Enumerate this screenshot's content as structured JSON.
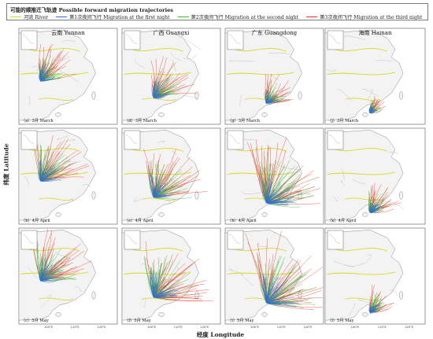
{
  "legend": {
    "title": "可能的顺推迁飞轨迹 Possible forward migration trajectories",
    "items": [
      {
        "label": "河流 River",
        "color": "#d8d820"
      },
      {
        "label": "第1次夜间飞行 Migration at the first night",
        "color": "#2f6fd6"
      },
      {
        "label": "第2次夜间飞行 Migration at the second night",
        "color": "#3cb43c"
      },
      {
        "label": "第3次夜间飞行 Migration at the third night",
        "color": "#e8321e"
      }
    ]
  },
  "axes": {
    "ylabel": "纬度 Latitude",
    "xlabel": "经度 Longitude",
    "x_ticks": [
      "100°E",
      "110°E",
      "120°E"
    ]
  },
  "columns": [
    {
      "title": "云南 Yunnan"
    },
    {
      "title": "广西 Guangxi"
    },
    {
      "title": "广东 Guangdong"
    },
    {
      "title": "海南 Hainan"
    }
  ],
  "panels": [
    [
      {
        "label": "（a）3月 March"
      },
      {
        "label": "（d）3月 March"
      },
      {
        "label": "（g）3月 March"
      },
      {
        "label": "（j）3月 March"
      }
    ],
    [
      {
        "label": "（b）4月 April"
      },
      {
        "label": "（e）4月 April"
      },
      {
        "label": "（h）4月 April"
      },
      {
        "label": "（k）4月 April"
      }
    ],
    [
      {
        "label": "（c）5月 May"
      },
      {
        "label": "（f）5月 May"
      },
      {
        "label": "（i）5月 May"
      },
      {
        "label": "（l）5月 May"
      }
    ]
  ],
  "colors": {
    "land": "#f3f3f3",
    "sea": "#ffffff",
    "border": "#8a8a8a",
    "river": "#d8d820",
    "night1": "#2f6fd6",
    "night2": "#3cb43c",
    "night3": "#e8321e"
  },
  "trajectory_spread": [
    [
      0.55,
      0.6,
      0.45,
      0.25
    ],
    [
      0.7,
      0.75,
      0.95,
      0.45
    ],
    [
      0.75,
      0.85,
      1.0,
      0.4
    ]
  ]
}
